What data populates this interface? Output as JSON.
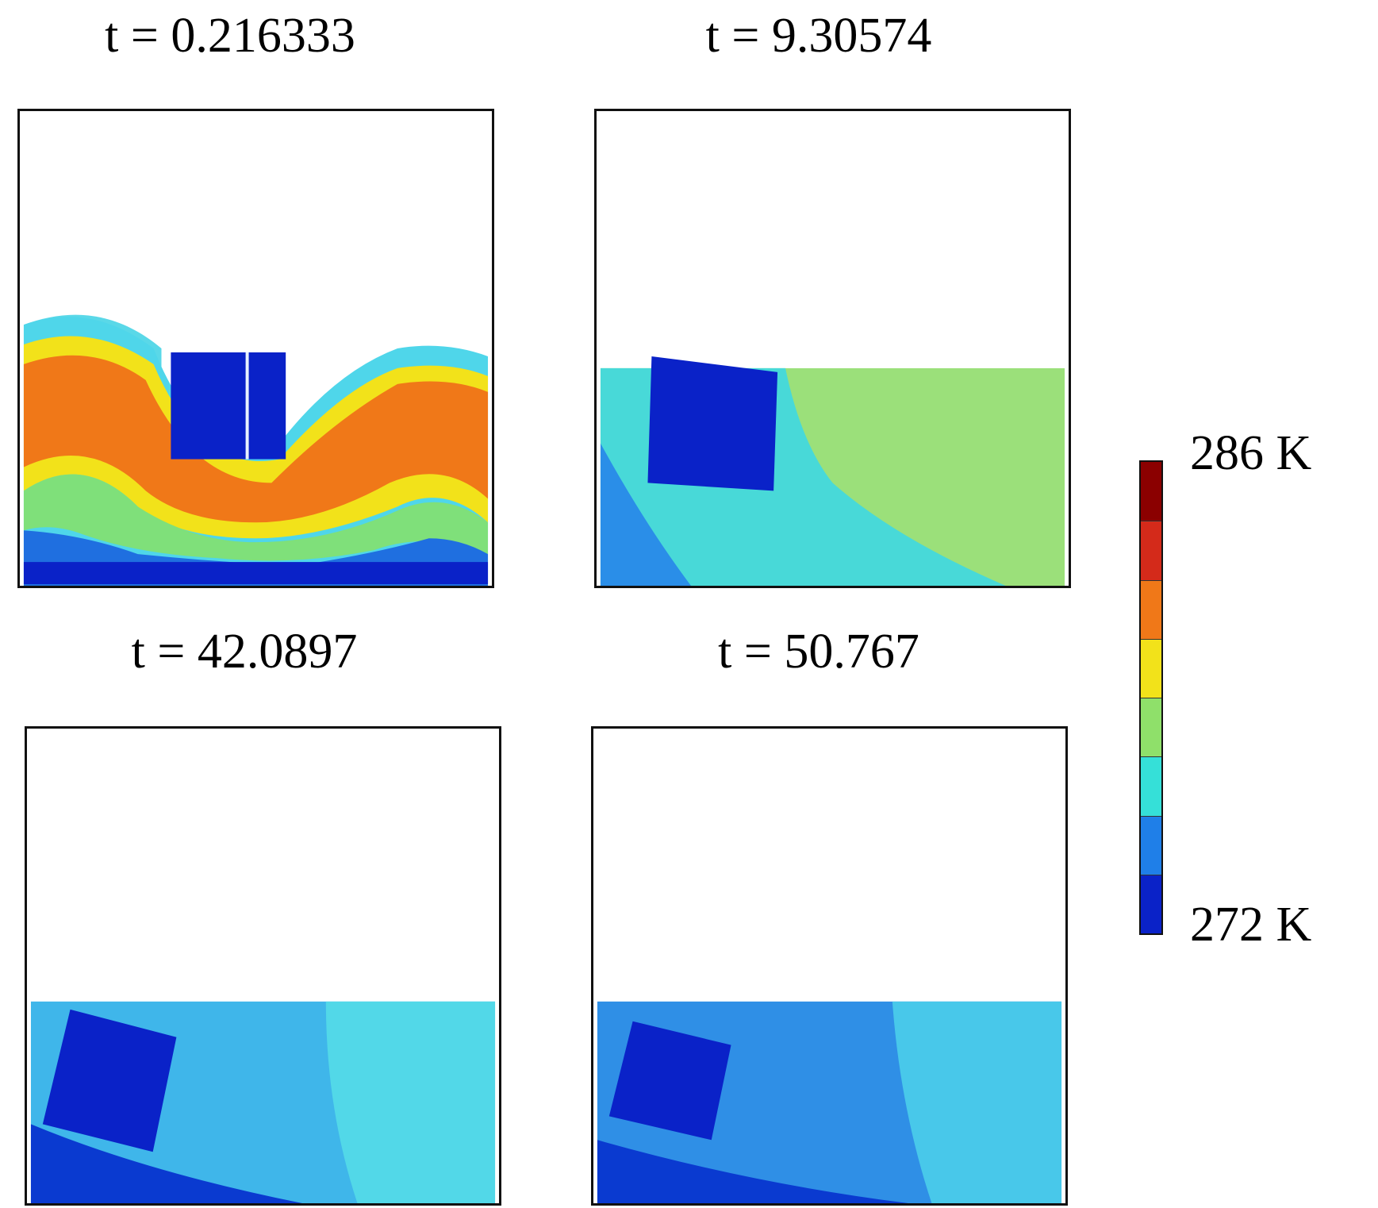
{
  "panels": [
    {
      "title": "t = 0.216333"
    },
    {
      "title": "t = 9.30574"
    },
    {
      "title": "t = 42.0897"
    },
    {
      "title": "t = 50.767"
    }
  ],
  "colorbar": {
    "max_label": "286 K",
    "min_label": "272 K",
    "colors": [
      "#8b0000",
      "#d42a1a",
      "#f07818",
      "#f2e21a",
      "#8fe06a",
      "#35e0d8",
      "#1f7fe8",
      "#0a22c8"
    ]
  }
}
